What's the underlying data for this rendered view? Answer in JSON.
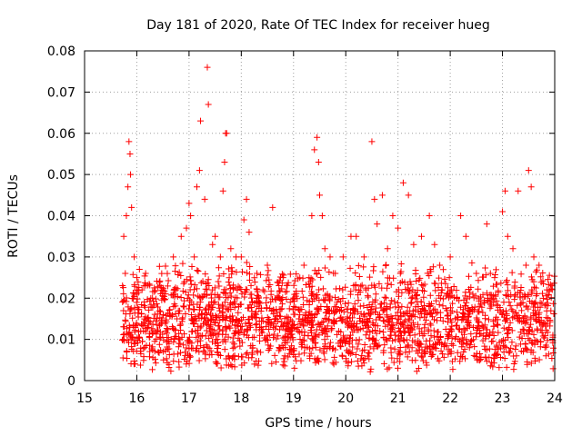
{
  "chart_data": {
    "type": "scatter",
    "title": "Day 181 of 2020, Rate Of TEC Index for receiver hueg",
    "xlabel": "GPS time / hours",
    "ylabel": "ROTI / TECUs",
    "xlim": [
      15,
      24
    ],
    "ylim": [
      0,
      0.08
    ],
    "xticks": [
      "15",
      "16",
      "17",
      "18",
      "19",
      "20",
      "21",
      "22",
      "23",
      "24"
    ],
    "yticks": [
      "0",
      "0.01",
      "0.02",
      "0.03",
      "0.04",
      "0.05",
      "0.06",
      "0.07",
      "0.08"
    ],
    "grid": true,
    "marker": "plus",
    "color": "#ff0000",
    "points": [
      [
        15.75,
        0.035
      ],
      [
        15.8,
        0.04
      ],
      [
        15.83,
        0.047
      ],
      [
        15.85,
        0.058
      ],
      [
        15.87,
        0.055
      ],
      [
        15.9,
        0.042
      ],
      [
        15.95,
        0.03
      ],
      [
        15.78,
        0.026
      ],
      [
        15.88,
        0.05
      ],
      [
        16.0,
        0.025
      ],
      [
        16.05,
        0.027
      ],
      [
        16.1,
        0.022
      ],
      [
        16.3,
        0.02
      ],
      [
        16.5,
        0.022
      ],
      [
        16.7,
        0.03
      ],
      [
        16.85,
        0.035
      ],
      [
        16.95,
        0.037
      ],
      [
        17.0,
        0.043
      ],
      [
        17.03,
        0.04
      ],
      [
        17.1,
        0.03
      ],
      [
        17.15,
        0.047
      ],
      [
        17.2,
        0.051
      ],
      [
        17.22,
        0.063
      ],
      [
        17.3,
        0.044
      ],
      [
        17.35,
        0.076
      ],
      [
        17.37,
        0.067
      ],
      [
        17.45,
        0.033
      ],
      [
        17.5,
        0.035
      ],
      [
        17.6,
        0.03
      ],
      [
        17.65,
        0.046
      ],
      [
        17.68,
        0.053
      ],
      [
        17.7,
        0.06
      ],
      [
        17.72,
        0.06
      ],
      [
        17.8,
        0.032
      ],
      [
        17.9,
        0.03
      ],
      [
        18.0,
        0.03
      ],
      [
        18.05,
        0.039
      ],
      [
        18.1,
        0.044
      ],
      [
        18.15,
        0.036
      ],
      [
        18.3,
        0.026
      ],
      [
        18.5,
        0.028
      ],
      [
        18.6,
        0.042
      ],
      [
        18.8,
        0.025
      ],
      [
        19.0,
        0.02
      ],
      [
        19.2,
        0.028
      ],
      [
        19.35,
        0.04
      ],
      [
        19.4,
        0.056
      ],
      [
        19.45,
        0.059
      ],
      [
        19.48,
        0.053
      ],
      [
        19.5,
        0.045
      ],
      [
        19.55,
        0.04
      ],
      [
        19.6,
        0.032
      ],
      [
        19.7,
        0.03
      ],
      [
        19.8,
        0.026
      ],
      [
        19.95,
        0.03
      ],
      [
        20.1,
        0.035
      ],
      [
        20.2,
        0.035
      ],
      [
        20.35,
        0.03
      ],
      [
        20.5,
        0.058
      ],
      [
        20.55,
        0.044
      ],
      [
        20.6,
        0.038
      ],
      [
        20.7,
        0.045
      ],
      [
        20.8,
        0.032
      ],
      [
        20.9,
        0.04
      ],
      [
        21.0,
        0.037
      ],
      [
        21.1,
        0.048
      ],
      [
        21.2,
        0.045
      ],
      [
        21.3,
        0.033
      ],
      [
        21.45,
        0.035
      ],
      [
        21.6,
        0.04
      ],
      [
        21.7,
        0.033
      ],
      [
        21.8,
        0.028
      ],
      [
        22.0,
        0.03
      ],
      [
        22.2,
        0.04
      ],
      [
        22.3,
        0.035
      ],
      [
        22.5,
        0.026
      ],
      [
        22.7,
        0.038
      ],
      [
        22.85,
        0.025
      ],
      [
        23.0,
        0.041
      ],
      [
        23.05,
        0.046
      ],
      [
        23.1,
        0.035
      ],
      [
        23.2,
        0.032
      ],
      [
        23.3,
        0.046
      ],
      [
        23.45,
        0.028
      ],
      [
        23.5,
        0.051
      ],
      [
        23.55,
        0.047
      ],
      [
        23.6,
        0.03
      ],
      [
        23.7,
        0.028
      ],
      [
        23.85,
        0.022
      ],
      [
        23.95,
        0.023
      ]
    ],
    "band": {
      "x_start": 15.72,
      "x_end": 24.0,
      "y_min": 0.002,
      "y_max": 0.028,
      "count": 2200
    }
  }
}
